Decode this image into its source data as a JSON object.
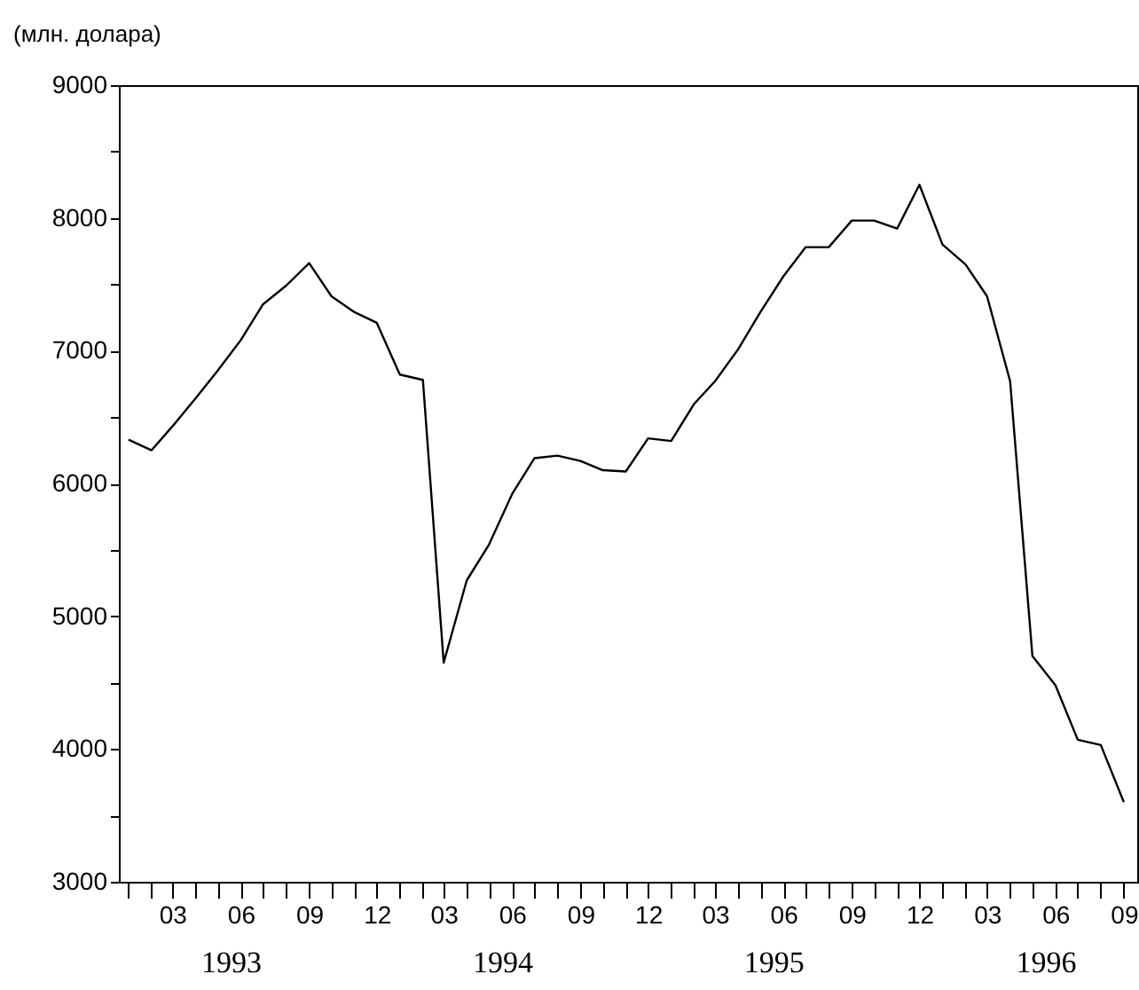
{
  "chart_data": {
    "type": "line",
    "ylabel": "(млн. долара)",
    "x": [
      "1993-01",
      "1993-02",
      "1993-03",
      "1993-04",
      "1993-05",
      "1993-06",
      "1993-07",
      "1993-08",
      "1993-09",
      "1993-10",
      "1993-11",
      "1993-12",
      "1994-01",
      "1994-02",
      "1994-03",
      "1994-04",
      "1994-05",
      "1994-06",
      "1994-07",
      "1994-08",
      "1994-09",
      "1994-10",
      "1994-11",
      "1994-12",
      "1995-01",
      "1995-02",
      "1995-03",
      "1995-04",
      "1995-05",
      "1995-06",
      "1995-07",
      "1995-08",
      "1995-09",
      "1995-10",
      "1995-11",
      "1995-12",
      "1996-01",
      "1996-02",
      "1996-03",
      "1996-04",
      "1996-05",
      "1996-06",
      "1996-07",
      "1996-08",
      "1996-09"
    ],
    "series": [
      {
        "color": "#000000",
        "line_style": "solid",
        "values": [
          6330,
          6250,
          6430,
          6640,
          6850,
          7080,
          7350,
          7490,
          7660,
          7410,
          7290,
          7210,
          6820,
          6780,
          4650,
          5270,
          5540,
          5920,
          6190,
          6210,
          6170,
          6100,
          6090,
          6340,
          6320,
          6600,
          6770,
          7010,
          7290,
          7560,
          7780,
          7780,
          7980,
          7980,
          7920,
          8250,
          7800,
          7650,
          7410,
          6770,
          4700,
          4480,
          4070,
          4030,
          3600
        ]
      }
    ],
    "xlim": [
      "1992-12-19",
      "1996-09-19"
    ],
    "xticks": [
      {
        "value": "1993-01",
        "label": null
      },
      {
        "value": "1993-02",
        "label": null
      },
      {
        "value": "1993-03",
        "label": "03"
      },
      {
        "value": "1993-04",
        "label": null
      },
      {
        "value": "1993-05",
        "label": null
      },
      {
        "value": "1993-06",
        "label": "06"
      },
      {
        "value": "1993-07",
        "label": null
      },
      {
        "value": "1993-08",
        "label": null
      },
      {
        "value": "1993-09",
        "label": "09"
      },
      {
        "value": "1993-10",
        "label": null
      },
      {
        "value": "1993-11",
        "label": null
      },
      {
        "value": "1993-12",
        "label": "12"
      },
      {
        "value": "1994-01",
        "label": null
      },
      {
        "value": "1994-02",
        "label": null
      },
      {
        "value": "1994-03",
        "label": "03"
      },
      {
        "value": "1994-04",
        "label": null
      },
      {
        "value": "1994-05",
        "label": null
      },
      {
        "value": "1994-06",
        "label": "06"
      },
      {
        "value": "1994-07",
        "label": null
      },
      {
        "value": "1994-08",
        "label": null
      },
      {
        "value": "1994-09",
        "label": "09"
      },
      {
        "value": "1994-10",
        "label": null
      },
      {
        "value": "1994-11",
        "label": null
      },
      {
        "value": "1994-12",
        "label": "12"
      },
      {
        "value": "1995-01",
        "label": null
      },
      {
        "value": "1995-02",
        "label": null
      },
      {
        "value": "1995-03",
        "label": "03"
      },
      {
        "value": "1995-04",
        "label": null
      },
      {
        "value": "1995-05",
        "label": null
      },
      {
        "value": "1995-06",
        "label": "06"
      },
      {
        "value": "1995-07",
        "label": null
      },
      {
        "value": "1995-08",
        "label": null
      },
      {
        "value": "1995-09",
        "label": "09"
      },
      {
        "value": "1995-10",
        "label": null
      },
      {
        "value": "1995-11",
        "label": null
      },
      {
        "value": "1995-12",
        "label": "12"
      },
      {
        "value": "1996-01",
        "label": null
      },
      {
        "value": "1996-02",
        "label": null
      },
      {
        "value": "1996-03",
        "label": "03"
      },
      {
        "value": "1996-04",
        "label": null
      },
      {
        "value": "1996-05",
        "label": null
      },
      {
        "value": "1996-06",
        "label": "06"
      },
      {
        "value": "1996-07",
        "label": null
      },
      {
        "value": "1996-08",
        "label": null
      },
      {
        "value": "1996-09",
        "label": "09"
      }
    ],
    "ylim": [
      3000,
      9000
    ],
    "yticks": [
      3000,
      {
        "value": 3500,
        "label": null
      },
      4000,
      {
        "value": 4500,
        "label": null
      },
      5000,
      {
        "value": 5500,
        "label": null
      },
      6000,
      {
        "value": 6500,
        "label": null
      },
      7000,
      {
        "value": 7500,
        "label": null
      },
      8000,
      {
        "value": 8500,
        "label": null
      },
      9000
    ],
    "annotations": [
      "1993",
      "1994",
      "1995",
      "1996"
    ],
    "grid": false
  }
}
